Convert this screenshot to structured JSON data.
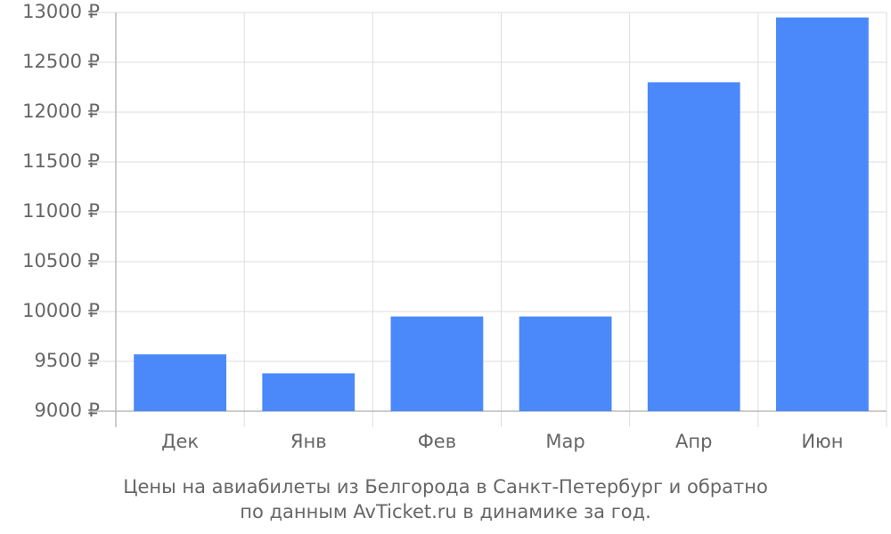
{
  "chart_data": {
    "type": "bar",
    "title": "Цены на авиабилеты из Белгорода в Санкт-Петербург и обратно",
    "subtitle": "по данным AvTicket.ru в динамике за год.",
    "categories": [
      "Дек",
      "Янв",
      "Фев",
      "Мар",
      "Апр",
      "Июн"
    ],
    "values": [
      9570,
      9380,
      9950,
      9950,
      12300,
      12950
    ],
    "color": "#4b89fa",
    "ylim": [
      9000,
      13000
    ],
    "yticks": [
      {
        "value": 9000,
        "label": "9000 ₽"
      },
      {
        "value": 9500,
        "label": "9500 ₽"
      },
      {
        "value": 10000,
        "label": "10000 ₽"
      },
      {
        "value": 10500,
        "label": "10500 ₽"
      },
      {
        "value": 11000,
        "label": "11000 ₽"
      },
      {
        "value": 11500,
        "label": "11500 ₽"
      },
      {
        "value": 12000,
        "label": "12000 ₽"
      },
      {
        "value": 12500,
        "label": "12500 ₽"
      },
      {
        "value": 13000,
        "label": "13000 ₽"
      }
    ],
    "grid": true
  }
}
